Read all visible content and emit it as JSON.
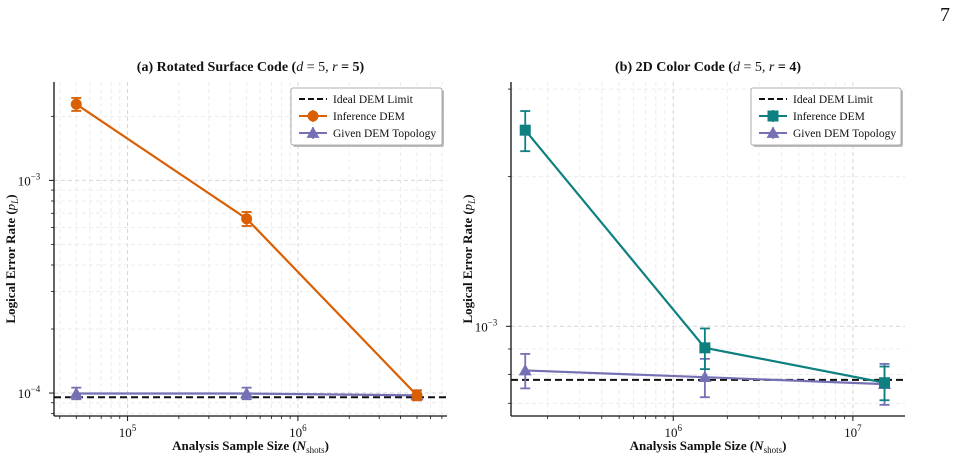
{
  "page": {
    "number": "7"
  },
  "chart_data": [
    {
      "type": "line",
      "title": "(a) Rotated Surface Code (d = 5, r = 5)",
      "title_parts": {
        "bold": "(a) Rotated Surface Code (",
        "d": "d",
        "d_val": " = 5, ",
        "r": "r",
        "r_val": " = 5)"
      },
      "xlabel": "Analysis Sample Size (N_shots)",
      "xlabel_parts": {
        "main": "Analysis Sample Size (",
        "N": "N",
        "sub": "shots",
        "close": ")"
      },
      "ylabel": "Logical Error Rate (p_L)",
      "ylabel_parts": {
        "main": "Logical Error Rate (",
        "p": "p",
        "sub": "L",
        "close": ")"
      },
      "xscale": "log",
      "yscale": "log",
      "xlim": [
        37000,
        7500000
      ],
      "ylim": [
        7.8e-05,
        0.0029
      ],
      "x_ticks": [
        {
          "value": 100000,
          "base": "10",
          "exp": "5"
        },
        {
          "value": 1000000,
          "base": "10",
          "exp": "6"
        }
      ],
      "y_ticks": [
        {
          "value": 0.0001,
          "base": "10",
          "exp": "−4"
        },
        {
          "value": 0.001,
          "base": "10",
          "exp": "−3"
        }
      ],
      "grid": true,
      "legend_position": "top-right",
      "reference_line": {
        "name": "Ideal DEM Limit",
        "y": 9.55e-05,
        "color": "#111111",
        "style": "dashed"
      },
      "series": [
        {
          "name": "Inference DEM",
          "marker": "circle",
          "color": "#d95f02",
          "x": [
            50000,
            500000,
            5000000
          ],
          "y": [
            0.00228,
            0.00066,
            9.75e-05
          ],
          "err_low": [
            0.00212,
            0.00061,
            9.25e-05
          ],
          "err_high": [
            0.00244,
            0.00071,
            0.000103
          ]
        },
        {
          "name": "Given DEM Topology",
          "marker": "triangle",
          "color": "#7570b3",
          "x": [
            50000,
            500000,
            5000000
          ],
          "y": [
            9.95e-05,
            9.95e-05,
            9.75e-05
          ],
          "err_low": [
            9.35e-05,
            9.35e-05,
            9.25e-05
          ],
          "err_high": [
            0.000106,
            0.000106,
            0.000103
          ]
        }
      ]
    },
    {
      "type": "line",
      "title": "(b) 2D Color Code (d = 5, r = 4)",
      "title_parts": {
        "bold": "(b) 2D Color Code (",
        "d": "d",
        "d_val": " = 5, ",
        "r": "r",
        "r_val": " = 4)"
      },
      "xlabel": "Analysis Sample Size (N_shots)",
      "xlabel_parts": {
        "main": "Analysis Sample Size (",
        "N": "N",
        "sub": "shots",
        "close": ")"
      },
      "ylabel": "Logical Error Rate (p_L)",
      "ylabel_parts": {
        "main": "Logical Error Rate (",
        "p": "p",
        "sub": "L",
        "close": ")"
      },
      "xscale": "log",
      "yscale": "log",
      "xlim": [
        125000,
        19500000
      ],
      "ylim": [
        0.00066,
        0.0031
      ],
      "x_ticks": [
        {
          "value": 1000000,
          "base": "10",
          "exp": "6"
        },
        {
          "value": 10000000,
          "base": "10",
          "exp": "7"
        }
      ],
      "y_ticks": [
        {
          "value": 0.001,
          "base": "10",
          "exp": "−3"
        }
      ],
      "grid": true,
      "legend_position": "top-right",
      "reference_line": {
        "name": "Ideal DEM Limit",
        "y": 0.00078,
        "color": "#111111",
        "style": "dashed"
      },
      "series": [
        {
          "name": "Inference DEM",
          "marker": "square",
          "color": "#0f8080",
          "x": [
            150000,
            1500000,
            15000000
          ],
          "y": [
            0.00248,
            0.000905,
            0.00077
          ],
          "err_low": [
            0.00225,
            0.00082,
            0.00071
          ],
          "err_high": [
            0.00271,
            0.00099,
            0.00083
          ]
        },
        {
          "name": "Given DEM Topology",
          "marker": "triangle",
          "color": "#7570b3",
          "x": [
            150000,
            1500000,
            15000000
          ],
          "y": [
            0.000815,
            0.00079,
            0.000765
          ],
          "err_low": [
            0.00075,
            0.00072,
            0.000695
          ],
          "err_high": [
            0.00088,
            0.00086,
            0.00084
          ]
        }
      ]
    }
  ]
}
